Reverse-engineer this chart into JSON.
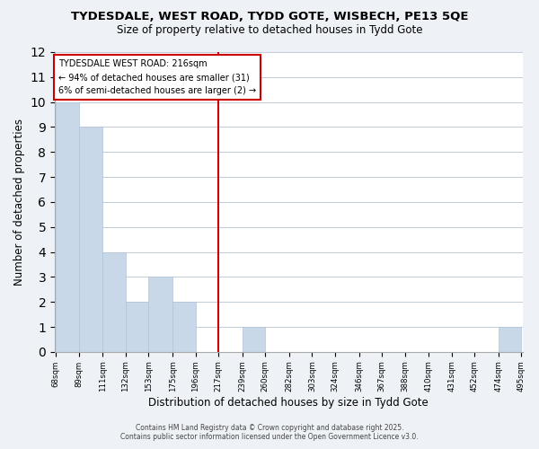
{
  "title": "TYDESDALE, WEST ROAD, TYDD GOTE, WISBECH, PE13 5QE",
  "subtitle": "Size of property relative to detached houses in Tydd Gote",
  "xlabel": "Distribution of detached houses by size in Tydd Gote",
  "ylabel": "Number of detached properties",
  "bins": [
    68,
    89,
    111,
    132,
    153,
    175,
    196,
    217,
    239,
    260,
    282,
    303,
    324,
    346,
    367,
    388,
    410,
    431,
    452,
    474,
    495
  ],
  "bin_labels": [
    "68sqm",
    "89sqm",
    "111sqm",
    "132sqm",
    "153sqm",
    "175sqm",
    "196sqm",
    "217sqm",
    "239sqm",
    "260sqm",
    "282sqm",
    "303sqm",
    "324sqm",
    "346sqm",
    "367sqm",
    "388sqm",
    "410sqm",
    "431sqm",
    "452sqm",
    "474sqm",
    "495sqm"
  ],
  "counts": [
    10,
    9,
    4,
    2,
    3,
    2,
    0,
    0,
    1,
    0,
    0,
    0,
    0,
    0,
    0,
    0,
    0,
    0,
    0,
    1
  ],
  "bar_color": "#c8d8e8",
  "bar_edge_color": "#b0c4d8",
  "vline_x": 217,
  "vline_color": "#cc0000",
  "annotation_title": "TYDESDALE WEST ROAD: 216sqm",
  "annotation_line1": "← 94% of detached houses are smaller (31)",
  "annotation_line2": "6% of semi-detached houses are larger (2) →",
  "ylim": [
    0,
    12
  ],
  "yticks": [
    0,
    1,
    2,
    3,
    4,
    5,
    6,
    7,
    8,
    9,
    10,
    11,
    12
  ],
  "footer_line1": "Contains HM Land Registry data © Crown copyright and database right 2025.",
  "footer_line2": "Contains public sector information licensed under the Open Government Licence v3.0.",
  "bg_color": "#eef2f7",
  "plot_bg_color": "#ffffff",
  "grid_color": "#c0ccd8"
}
